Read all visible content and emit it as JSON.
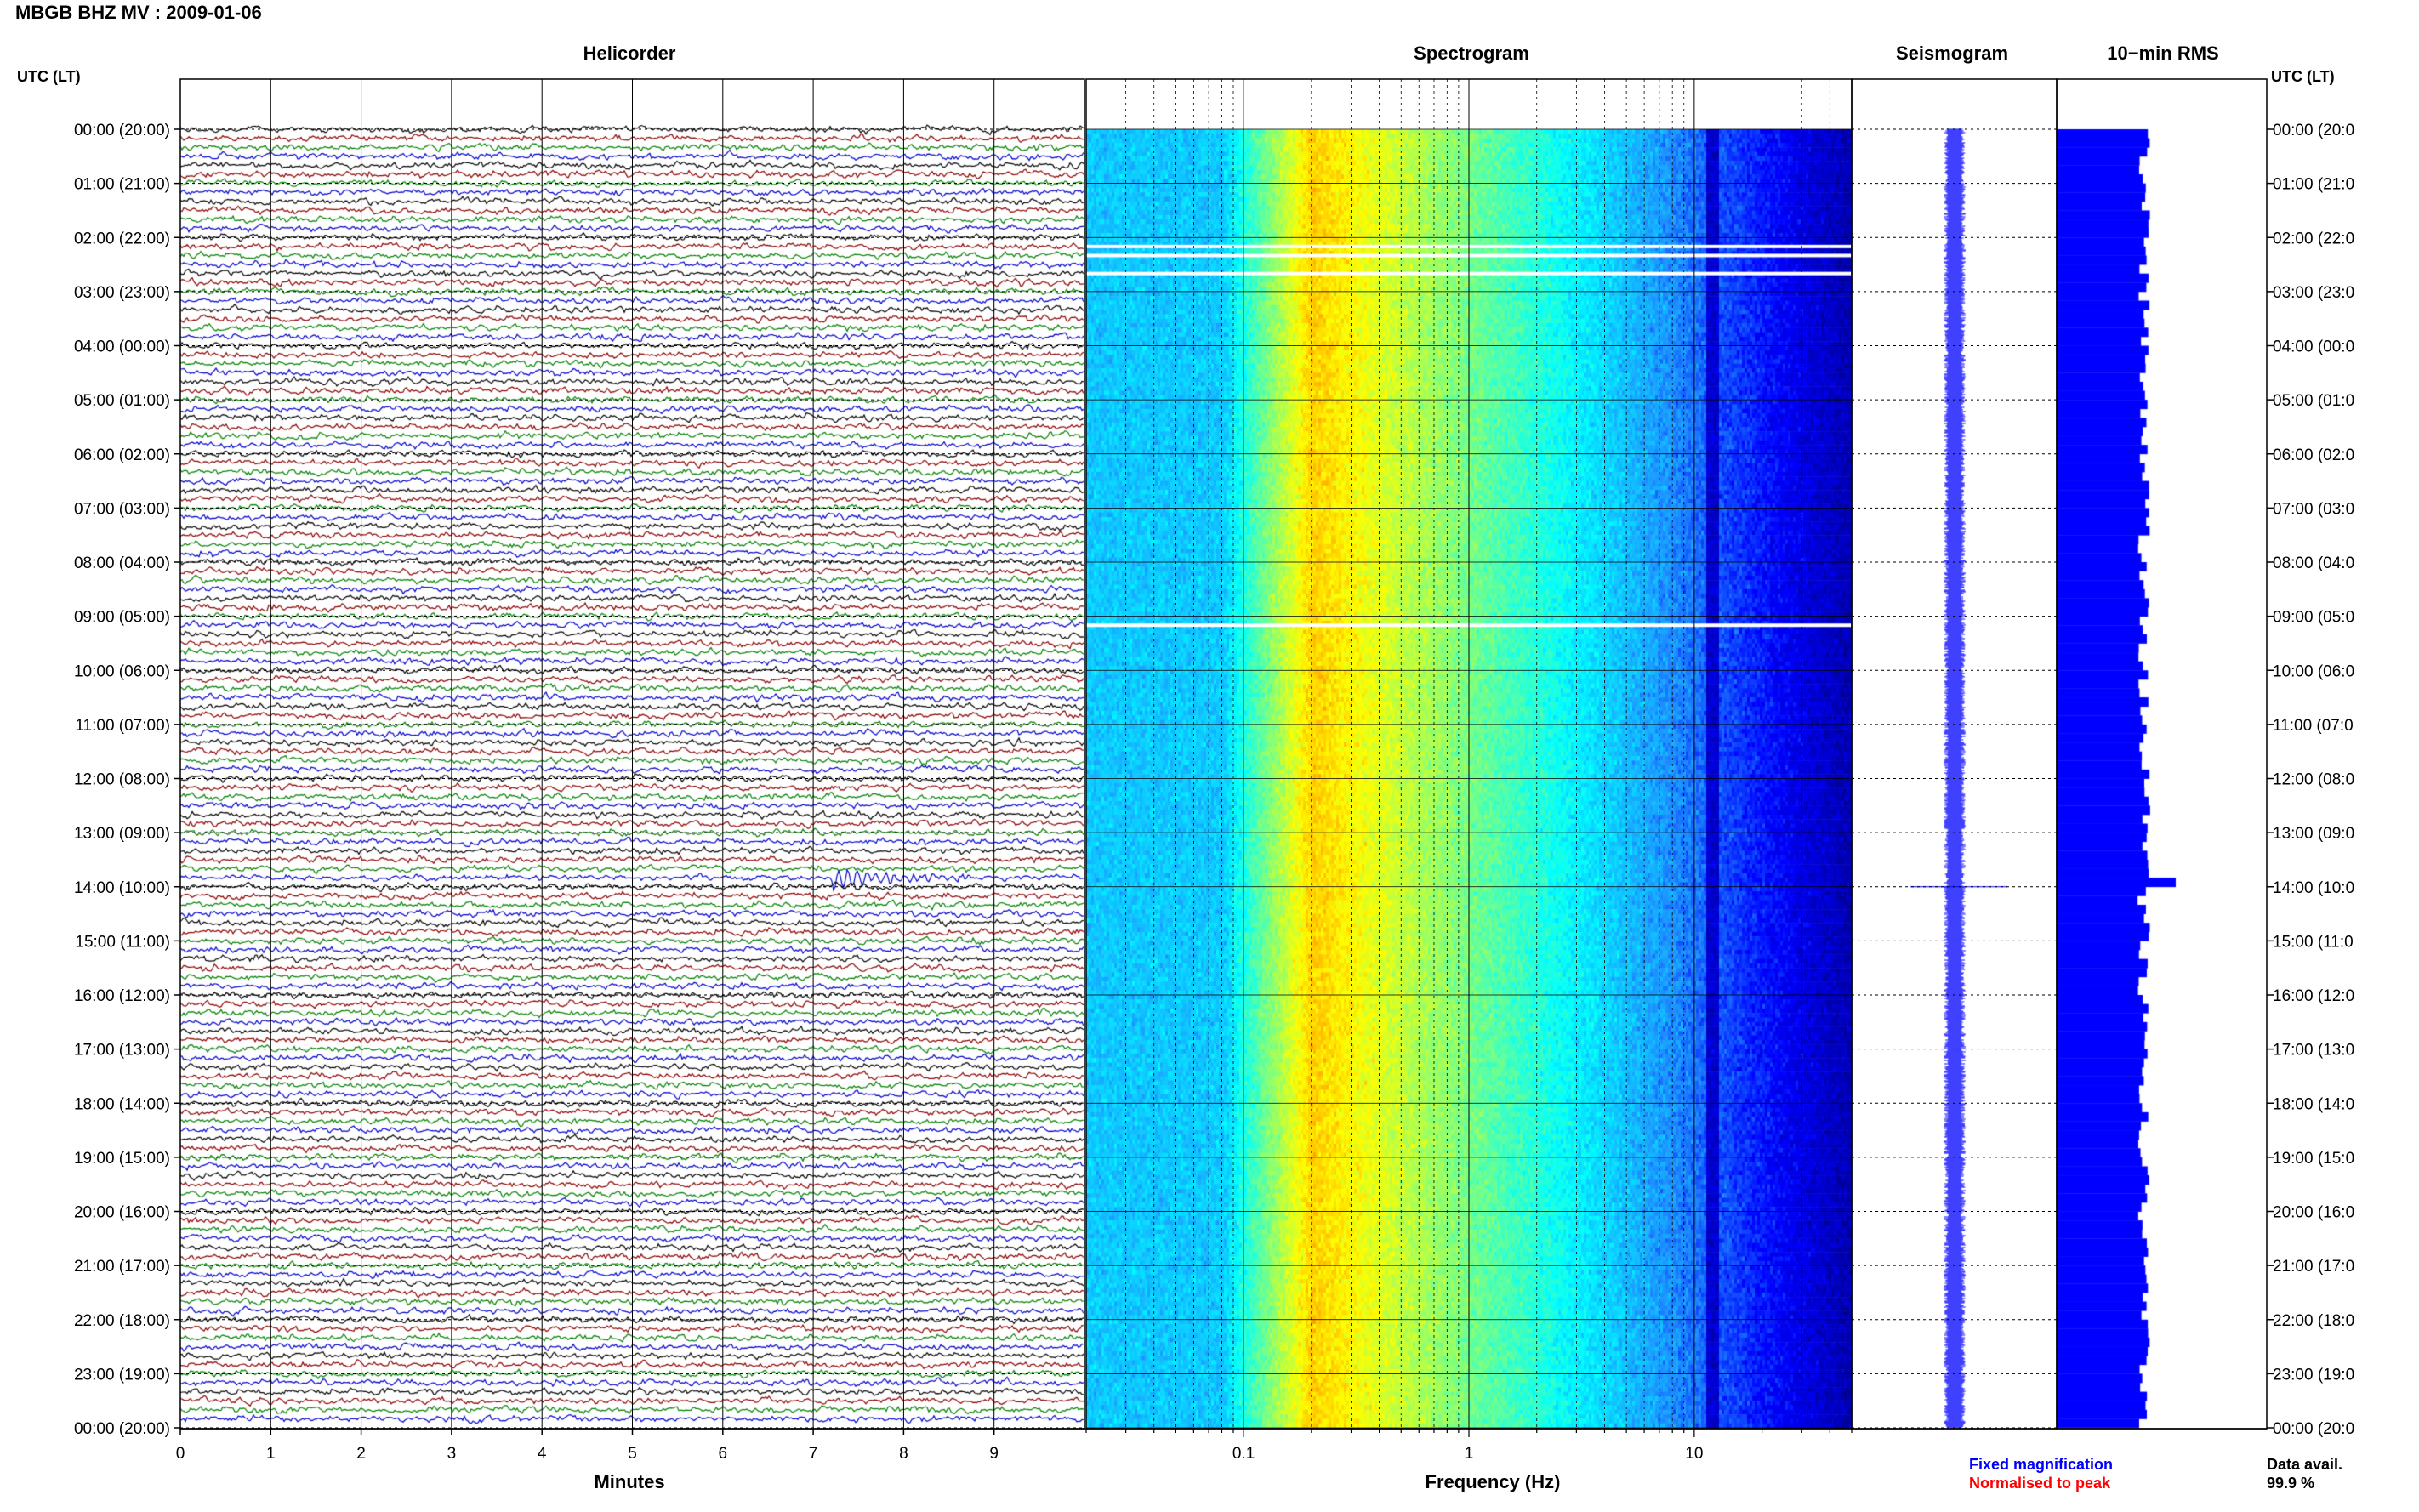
{
  "title": "MBGB BHZ MV : 2009-01-06",
  "panels": {
    "helicorder": "Helicorder",
    "spectrogram": "Spectrogram",
    "seismogram": "Seismogram",
    "rms": "10−min RMS"
  },
  "time_axis_label": "UTC (LT)",
  "legend": {
    "fixed": "Fixed magnification",
    "normalised": "Normalised to peak",
    "fixed_color": "#0000ff",
    "normalised_color": "#ff0000"
  },
  "data_availability": {
    "label": "Data avail.",
    "value": "99.9 %"
  },
  "colors": {
    "trace_cycle": [
      "#000000",
      "#8b0000",
      "#008000",
      "#0000cc"
    ],
    "spectrogram_cmap": [
      "#00008b",
      "#0000ff",
      "#1e90ff",
      "#00ffff",
      "#7fff7f",
      "#ffff00",
      "#ff8c00"
    ],
    "rms_bar": "#0000ff",
    "seismogram": "#0000ff"
  },
  "chart_data": [
    {
      "type": "line",
      "panel": "Helicorder",
      "xlabel": "Minutes",
      "x_ticks": [
        "0",
        "1",
        "2",
        "3",
        "4",
        "5",
        "6",
        "7",
        "8",
        "9"
      ],
      "xlim": [
        0,
        10
      ],
      "y_ticks_left": [
        "00:00 (20:00)",
        "01:00 (21:00)",
        "02:00 (22:00)",
        "03:00 (23:00)",
        "04:00 (00:00)",
        "05:00 (01:00)",
        "06:00 (02:00)",
        "07:00 (03:00)",
        "08:00 (04:00)",
        "09:00 (05:00)",
        "10:00 (06:00)",
        "11:00 (07:00)",
        "12:00 (08:00)",
        "13:00 (09:00)",
        "14:00 (10:00)",
        "15:00 (11:00)",
        "16:00 (12:00)",
        "17:00 (13:00)",
        "18:00 (14:00)",
        "19:00 (15:00)",
        "20:00 (16:00)",
        "21:00 (17:00)",
        "22:00 (18:00)",
        "23:00 (19:00)",
        "00:00 (20:00)"
      ],
      "lines_per_hour": 6,
      "total_lines": 144,
      "events": [
        {
          "time_utc": "13:50",
          "minute": 7.2,
          "note": "large arrival"
        }
      ]
    },
    {
      "type": "heatmap",
      "panel": "Spectrogram",
      "xlabel": "Frequency (Hz)",
      "x_scale": "log",
      "xlim": [
        0.02,
        50
      ],
      "x_ticks": [
        "0.1",
        "1",
        "10"
      ],
      "peak_frequency_hz": 0.2,
      "gaps_utc": [
        "02:10",
        "02:20",
        "02:40",
        "09:10"
      ]
    },
    {
      "type": "line",
      "panel": "Seismogram",
      "spike_utc": "14:00"
    },
    {
      "type": "bar",
      "panel": "10−min RMS",
      "orientation": "horizontal",
      "bins": 144,
      "peak_utc": "13:50"
    }
  ],
  "y_ticks_right": [
    "00:00 (20:0",
    "01:00 (21:0",
    "02:00 (22:0",
    "03:00 (23:0",
    "04:00 (00:0",
    "05:00 (01:0",
    "06:00 (02:0",
    "07:00 (03:0",
    "08:00 (04:0",
    "09:00 (05:0",
    "10:00 (06:0",
    "11:00 (07:0",
    "12:00 (08:0",
    "13:00 (09:0",
    "14:00 (10:0",
    "15:00 (11:0",
    "16:00 (12:0",
    "17:00 (13:0",
    "18:00 (14:0",
    "19:00 (15:0",
    "20:00 (16:0",
    "21:00 (17:0",
    "22:00 (18:0",
    "23:00 (19:0",
    "00:00 (20:0"
  ]
}
